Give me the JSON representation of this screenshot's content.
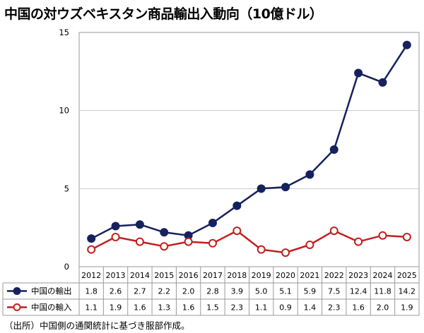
{
  "title": "中国の対ウズベキスタン商品輸出入動向（10億ドル）",
  "source": "（出所）中国側の通関統計に基づき服部作成。",
  "colors": {
    "export": "#15225e",
    "import": "#c41f1f"
  },
  "chart_data": {
    "type": "line",
    "title": "中国の対ウズベキスタン商品輸出入動向（10億ドル）",
    "xlabel": "",
    "ylabel": "",
    "ylim": [
      0,
      15
    ],
    "yticks": [
      0,
      5,
      10,
      15
    ],
    "categories": [
      "2012",
      "2013",
      "2014",
      "2015",
      "2016",
      "2017",
      "2018",
      "2019",
      "2020",
      "2021",
      "2022",
      "2023",
      "2024",
      "2025"
    ],
    "series": [
      {
        "name": "中国の輸出",
        "marker": "filled-circle",
        "values": [
          1.8,
          2.6,
          2.7,
          2.2,
          2.0,
          2.8,
          3.9,
          5.0,
          5.1,
          5.9,
          7.5,
          12.4,
          11.8,
          14.2
        ]
      },
      {
        "name": "中国の輸入",
        "marker": "open-circle",
        "values": [
          1.1,
          1.9,
          1.6,
          1.3,
          1.6,
          1.5,
          2.3,
          1.1,
          0.9,
          1.4,
          2.3,
          1.6,
          2.0,
          1.9
        ]
      }
    ],
    "grid": "horizontal",
    "legend": "data-table-left"
  }
}
